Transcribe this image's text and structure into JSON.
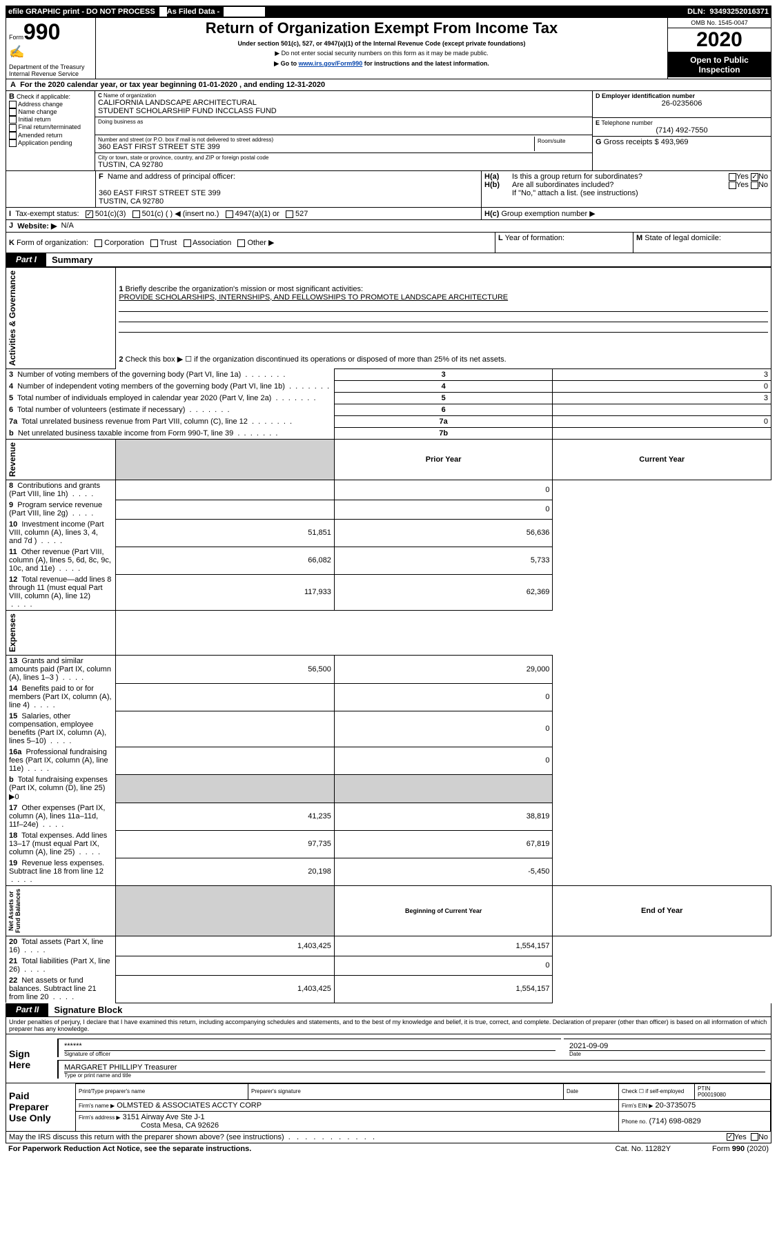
{
  "topbar": {
    "efile": "efile GRAPHIC print - DO NOT PROCESS",
    "asfiled": "As Filed Data -",
    "dln_label": "DLN:",
    "dln": "93493252016371"
  },
  "header": {
    "form_label": "Form",
    "form_num": "990",
    "dept": "Department of the Treasury\nInternal Revenue Service",
    "title": "Return of Organization Exempt From Income Tax",
    "subtitle": "Under section 501(c), 527, or 4947(a)(1) of the Internal Revenue Code (except private foundations)",
    "note1": "▶ Do not enter social security numbers on this form as it may be made public.",
    "note2_pre": "▶ Go to ",
    "note2_link": "www.irs.gov/Form990",
    "note2_post": " for instructions and the latest information.",
    "omb": "OMB No. 1545-0047",
    "year": "2020",
    "open": "Open to Public\nInspection"
  },
  "A": {
    "text": "For the 2020 calendar year, or tax year beginning 01-01-2020   , and ending 12-31-2020"
  },
  "B": {
    "label": "Check if applicable:",
    "items": [
      "Address change",
      "Name change",
      "Initial return",
      "Final return/terminated",
      "Amended return",
      "Application pending"
    ]
  },
  "C": {
    "name_label": "Name of organization",
    "name": "CALIFORNIA LANDSCAPE ARCHITECTURAL\nSTUDENT SCHOLARSHIP FUND INCCLASS FUND",
    "dba_label": "Doing business as",
    "addr_label": "Number and street (or P.O. box if mail is not delivered to street address)",
    "room_label": "Room/suite",
    "addr": "360 EAST FIRST STREET STE 399",
    "city_label": "City or town, state or province, country, and ZIP or foreign postal code",
    "city": "TUSTIN, CA  92780"
  },
  "D": {
    "label": "Employer identification number",
    "val": "26-0235606"
  },
  "E": {
    "label": "Telephone number",
    "val": "(714) 492-7550"
  },
  "G": {
    "label": "Gross receipts $",
    "val": "493,969"
  },
  "F": {
    "label": "Name and address of principal officer:",
    "addr1": "360 EAST FIRST STREET STE 399",
    "addr2": "TUSTIN, CA  92780"
  },
  "H": {
    "a": "Is this a group return for subordinates?",
    "b": "Are all subordinates included?",
    "b_note": "If \"No,\" attach a list. (see instructions)",
    "c": "Group exemption number ▶",
    "yes": "Yes",
    "no": "No"
  },
  "I": {
    "label": "Tax-exempt status:",
    "opts": [
      "501(c)(3)",
      "501(c) (  ) ◀ (insert no.)",
      "4947(a)(1) or",
      "527"
    ]
  },
  "J": {
    "label": "Website: ▶",
    "val": "N/A"
  },
  "K": {
    "label": "Form of organization:",
    "opts": [
      "Corporation",
      "Trust",
      "Association",
      "Other ▶"
    ]
  },
  "L": {
    "label": "Year of formation:",
    "val": ""
  },
  "M": {
    "label": "State of legal domicile:",
    "val": ""
  },
  "part1": {
    "tag": "Part I",
    "title": "Summary",
    "l1": "Briefly describe the organization's mission or most significant activities:",
    "l1v": "PROVIDE SCHOLARSHIPS, INTERNSHIPS, AND FELLOWSHIPS TO PROMOTE LANDSCAPE ARCHITECTURE",
    "l2": "Check this box ▶ ☐ if the organization discontinued its operations or disposed of more than 25% of its net assets.",
    "rows_ag": [
      {
        "n": "3",
        "t": "Number of voting members of the governing body (Part VI, line 1a)",
        "rn": "3",
        "v": "3"
      },
      {
        "n": "4",
        "t": "Number of independent voting members of the governing body (Part VI, line 1b)",
        "rn": "4",
        "v": "0"
      },
      {
        "n": "5",
        "t": "Total number of individuals employed in calendar year 2020 (Part V, line 2a)",
        "rn": "5",
        "v": "3"
      },
      {
        "n": "6",
        "t": "Total number of volunteers (estimate if necessary)",
        "rn": "6",
        "v": ""
      },
      {
        "n": "7a",
        "t": "Total unrelated business revenue from Part VIII, column (C), line 12",
        "rn": "7a",
        "v": "0"
      },
      {
        "n": "b",
        "t": "Net unrelated business taxable income from Form 990-T, line 39",
        "rn": "7b",
        "v": ""
      }
    ],
    "hdr_prior": "Prior Year",
    "hdr_curr": "Current Year",
    "rows_rev": [
      {
        "n": "8",
        "t": "Contributions and grants (Part VIII, line 1h)",
        "p": "",
        "c": "0"
      },
      {
        "n": "9",
        "t": "Program service revenue (Part VIII, line 2g)",
        "p": "",
        "c": "0"
      },
      {
        "n": "10",
        "t": "Investment income (Part VIII, column (A), lines 3, 4, and 7d )",
        "p": "51,851",
        "c": "56,636"
      },
      {
        "n": "11",
        "t": "Other revenue (Part VIII, column (A), lines 5, 6d, 8c, 9c, 10c, and 11e)",
        "p": "66,082",
        "c": "5,733"
      },
      {
        "n": "12",
        "t": "Total revenue—add lines 8 through 11 (must equal Part VIII, column (A), line 12)",
        "p": "117,933",
        "c": "62,369"
      }
    ],
    "rows_exp": [
      {
        "n": "13",
        "t": "Grants and similar amounts paid (Part IX, column (A), lines 1–3 )",
        "p": "56,500",
        "c": "29,000"
      },
      {
        "n": "14",
        "t": "Benefits paid to or for members (Part IX, column (A), line 4)",
        "p": "",
        "c": "0"
      },
      {
        "n": "15",
        "t": "Salaries, other compensation, employee benefits (Part IX, column (A), lines 5–10)",
        "p": "",
        "c": "0"
      },
      {
        "n": "16a",
        "t": "Professional fundraising fees (Part IX, column (A), line 11e)",
        "p": "",
        "c": "0"
      },
      {
        "n": "b",
        "t": "Total fundraising expenses (Part IX, column (D), line 25) ▶0",
        "p": null,
        "c": null,
        "gray": true
      },
      {
        "n": "17",
        "t": "Other expenses (Part IX, column (A), lines 11a–11d, 11f–24e)",
        "p": "41,235",
        "c": "38,819"
      },
      {
        "n": "18",
        "t": "Total expenses. Add lines 13–17 (must equal Part IX, column (A), line 25)",
        "p": "97,735",
        "c": "67,819"
      },
      {
        "n": "19",
        "t": "Revenue less expenses. Subtract line 18 from line 12",
        "p": "20,198",
        "c": "-5,450"
      }
    ],
    "hdr_beg": "Beginning of Current Year",
    "hdr_end": "End of Year",
    "rows_na": [
      {
        "n": "20",
        "t": "Total assets (Part X, line 16)",
        "p": "1,403,425",
        "c": "1,554,157"
      },
      {
        "n": "21",
        "t": "Total liabilities (Part X, line 26)",
        "p": "",
        "c": "0"
      },
      {
        "n": "22",
        "t": "Net assets or fund balances. Subtract line 21 from line 20",
        "p": "1,403,425",
        "c": "1,554,157"
      }
    ],
    "vt_ag": "Activities & Governance",
    "vt_rev": "Revenue",
    "vt_exp": "Expenses",
    "vt_na": "Net Assets or\nFund Balances"
  },
  "part2": {
    "tag": "Part II",
    "title": "Signature Block",
    "perjury": "Under penalties of perjury, I declare that I have examined this return, including accompanying schedules and statements, and to the best of my knowledge and belief, it is true, correct, and complete. Declaration of preparer (other than officer) is based on all information of which preparer has any knowledge."
  },
  "sign": {
    "here": "Sign\nHere",
    "stars": "******",
    "sig_label": "Signature of officer",
    "date": "2021-09-09",
    "date_label": "Date",
    "name": "MARGARET PHILLIPY Treasurer",
    "name_label": "Type or print name and title"
  },
  "paid": {
    "here": "Paid\nPreparer\nUse Only",
    "h1": "Print/Type preparer's name",
    "h2": "Preparer's signature",
    "h3": "Date",
    "h4_a": "Check ☐ if self-employed",
    "h4_b": "PTIN",
    "ptin": "P00019080",
    "firm_name_l": "Firm's name    ▶",
    "firm_name": "OLMSTED & ASSOCIATES ACCTY CORP",
    "firm_ein_l": "Firm's EIN ▶",
    "firm_ein": "20-3735075",
    "firm_addr_l": "Firm's address ▶",
    "firm_addr1": "3151 Airway Ave Ste J-1",
    "firm_addr2": "Costa Mesa, CA 92626",
    "phone_l": "Phone no.",
    "phone": "(714) 698-0829"
  },
  "footer": {
    "discuss": "May the IRS discuss this return with the preparer shown above? (see instructions)",
    "pra": "For Paperwork Reduction Act Notice, see the separate instructions.",
    "cat": "Cat. No. 11282Y",
    "form": "Form 990 (2020)",
    "yes": "Yes",
    "no": "No"
  }
}
